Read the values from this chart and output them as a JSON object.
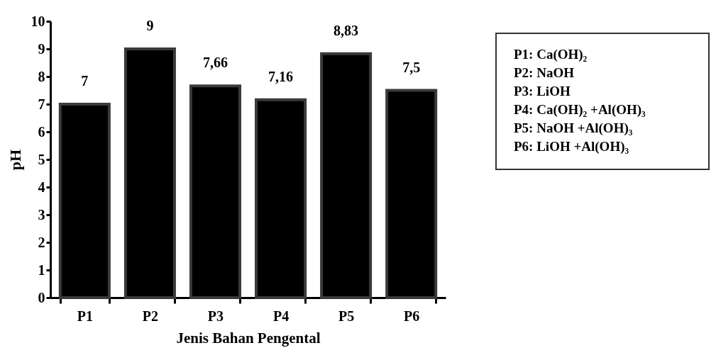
{
  "chart_data": {
    "type": "bar",
    "categories": [
      "P1",
      "P2",
      "P3",
      "P4",
      "P5",
      "P6"
    ],
    "values": [
      7,
      9,
      7.66,
      7.16,
      8.83,
      7.5
    ],
    "value_labels": [
      "7",
      "9",
      "7,66",
      "7,16",
      "8,83",
      "7,5"
    ],
    "color": "#000000",
    "xlabel": "Jenis Bahan Pengental",
    "ylabel": "pH",
    "ylim": [
      0,
      10
    ],
    "yticks": [
      0,
      1,
      2,
      3,
      4,
      5,
      6,
      7,
      8,
      9,
      10
    ],
    "grid": false,
    "annotations": [
      "P1: Ca(OH)₂",
      "P2: NaOH",
      "P3: LiOH",
      "P4: Ca(OH)₂ +Al(OH)₃",
      "P5: NaOH +Al(OH)₃",
      "P6: LiOH +Al(OH)₃"
    ]
  }
}
